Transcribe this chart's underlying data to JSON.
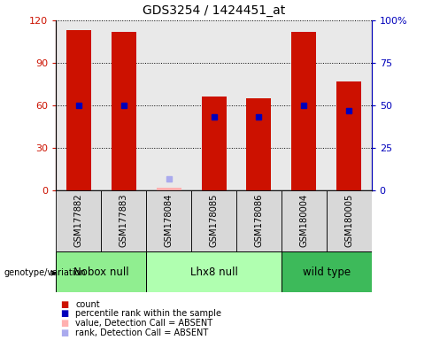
{
  "title": "GDS3254 / 1424451_at",
  "samples": [
    "GSM177882",
    "GSM177883",
    "GSM178084",
    "GSM178085",
    "GSM178086",
    "GSM180004",
    "GSM180005"
  ],
  "red_bars": [
    113,
    112,
    2,
    66,
    65,
    112,
    77
  ],
  "blue_markers": [
    50,
    50,
    null,
    43,
    43,
    50,
    47
  ],
  "absent_value": [
    false,
    false,
    true,
    false,
    false,
    false,
    false
  ],
  "absent_rank_val": 7,
  "absent_index": 2,
  "groups": [
    {
      "label": "Nobox null",
      "indices": [
        0,
        1
      ],
      "color": "#90ee90"
    },
    {
      "label": "Lhx8 null",
      "indices": [
        2,
        3,
        4
      ],
      "color": "#b0ffb0"
    },
    {
      "label": "wild type",
      "indices": [
        5,
        6
      ],
      "color": "#3dba5a"
    }
  ],
  "ylim_left": [
    0,
    120
  ],
  "ylim_right": [
    0,
    100
  ],
  "yticks_left": [
    0,
    30,
    60,
    90,
    120
  ],
  "yticks_right": [
    0,
    25,
    50,
    75,
    100
  ],
  "ytick_labels_left": [
    "0",
    "30",
    "60",
    "90",
    "120"
  ],
  "ytick_labels_right": [
    "0",
    "25",
    "50",
    "75",
    "100%"
  ],
  "bar_width": 0.55,
  "red_color": "#cc1100",
  "blue_color": "#0000bb",
  "pink_color": "#ffb0b0",
  "lightblue_color": "#aaaaee",
  "col_bg_color": "#d8d8d8",
  "legend_items": [
    {
      "color": "#cc1100",
      "label": "count"
    },
    {
      "color": "#0000bb",
      "label": "percentile rank within the sample"
    },
    {
      "color": "#ffb0b0",
      "label": "value, Detection Call = ABSENT"
    },
    {
      "color": "#aaaaee",
      "label": "rank, Detection Call = ABSENT"
    }
  ]
}
